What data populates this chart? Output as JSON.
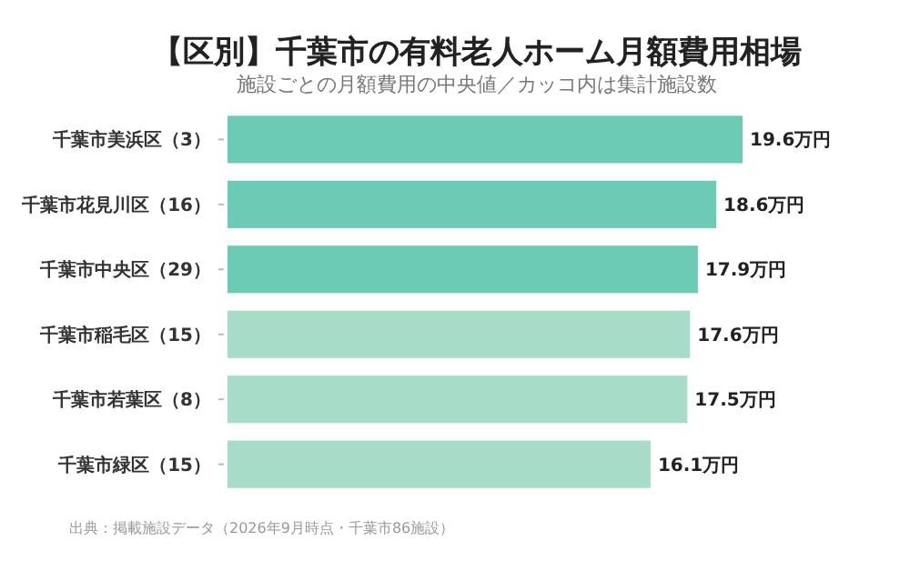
{
  "chart_data": {
    "type": "bar",
    "orientation": "horizontal",
    "title": "【区別】千葉市の有料老人ホーム月額費用相場",
    "subtitle": "施設ごとの月額費用の中央値／カッコ内は集計施設数",
    "categories": [
      "千葉市美浜区（3）",
      "千葉市花見川区（16）",
      "千葉市中央区（29）",
      "千葉市稲毛区（15）",
      "千葉市若葉区（8）",
      "千葉市緑区（15）"
    ],
    "values": [
      19.6,
      18.6,
      17.9,
      17.6,
      17.5,
      16.1
    ],
    "colors": [
      "#6ccbb4",
      "#6ccbb4",
      "#6ccbb4",
      "#a6dcc8",
      "#a6dcc8",
      "#a6dcc8"
    ],
    "value_labels": [
      "19.6万円",
      "18.6万円",
      "17.9万円",
      "17.6万円",
      "17.5万円",
      "16.1万円"
    ],
    "annotations": [
      "出典：掲載施設データ（2026年9月時点・千葉市86施設）"
    ]
  }
}
